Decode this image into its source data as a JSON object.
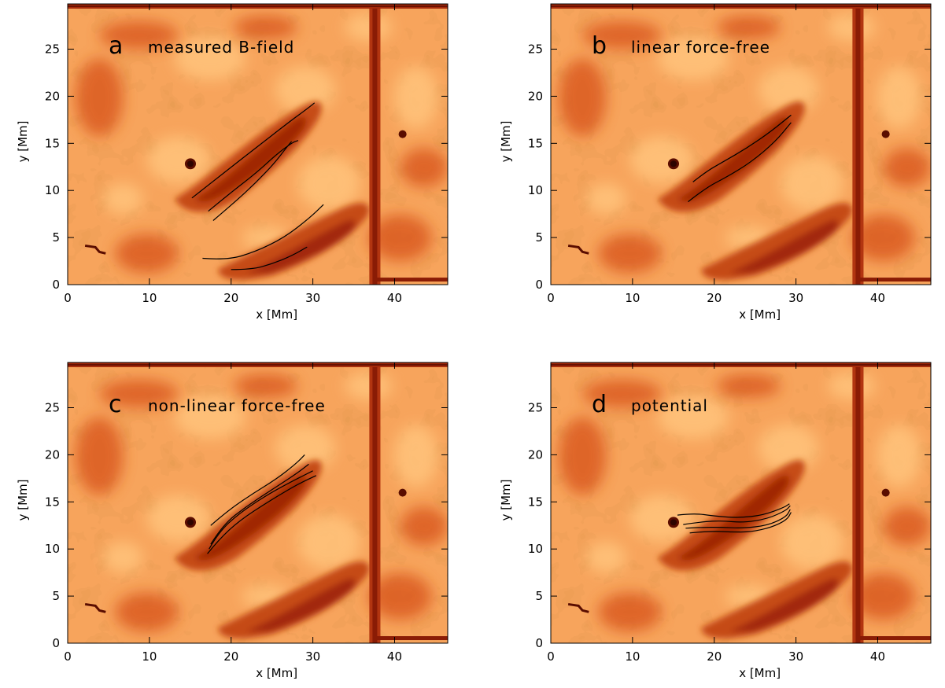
{
  "chart_data": [
    {
      "type": "heatmap",
      "panel_letter": "a",
      "title": "measured B-field",
      "xlabel": "x [Mm]",
      "ylabel": "y [Mm]",
      "xlim": [
        0,
        46.5
      ],
      "ylim": [
        0,
        29.8
      ],
      "xticks": [
        0,
        10,
        20,
        30,
        40
      ],
      "yticks": [
        0,
        5,
        10,
        15,
        20,
        25
      ],
      "series": [
        {
          "values": [
            [
              15.2,
              9.2
            ],
            [
              19,
              11.8
            ],
            [
              23,
              14.5
            ],
            [
              27,
              17.2
            ],
            [
              29.5,
              18.8
            ],
            [
              30.2,
              19.3
            ]
          ]
        },
        {
          "values": [
            [
              17.2,
              7.8
            ],
            [
              20,
              9.8
            ],
            [
              23,
              11.8
            ],
            [
              25.5,
              13.8
            ],
            [
              27.5,
              15.1
            ],
            [
              28.2,
              15.3
            ]
          ]
        },
        {
          "values": [
            [
              17.8,
              6.8
            ],
            [
              20.5,
              8.8
            ],
            [
              23,
              10.8
            ],
            [
              25.2,
              12.8
            ],
            [
              27,
              14.8
            ],
            [
              27.4,
              15.2
            ]
          ]
        },
        {
          "values": [
            [
              16.5,
              2.8
            ],
            [
              19.5,
              2.6
            ],
            [
              23,
              3.5
            ],
            [
              26.5,
              5
            ],
            [
              29.5,
              7
            ],
            [
              31.3,
              8.5
            ]
          ]
        },
        {
          "values": [
            [
              20,
              1.6
            ],
            [
              22.5,
              1.6
            ],
            [
              25,
              2.2
            ],
            [
              27.5,
              3.1
            ],
            [
              29.3,
              4
            ]
          ]
        }
      ]
    },
    {
      "type": "heatmap",
      "panel_letter": "b",
      "title": "linear force-free",
      "xlabel": "x [Mm]",
      "ylabel": "y [Mm]",
      "xlim": [
        0,
        46.5
      ],
      "ylim": [
        0,
        29.8
      ],
      "xticks": [
        0,
        10,
        20,
        30,
        40
      ],
      "yticks": [
        0,
        5,
        10,
        15,
        20,
        25
      ],
      "series": [
        {
          "values": [
            [
              17.4,
              10.9
            ],
            [
              19,
              12
            ],
            [
              21,
              13
            ],
            [
              24,
              14.5
            ],
            [
              27,
              16.3
            ],
            [
              29.4,
              18
            ]
          ]
        },
        {
          "values": [
            [
              16.8,
              8.8
            ],
            [
              19,
              10.3
            ],
            [
              21.5,
              11.4
            ],
            [
              24.5,
              13
            ],
            [
              27.5,
              15.2
            ],
            [
              29.4,
              17.2
            ]
          ]
        }
      ]
    },
    {
      "type": "heatmap",
      "panel_letter": "c",
      "title": "non-linear force-free",
      "xlabel": "x [Mm]",
      "ylabel": "y [Mm]",
      "xlim": [
        0,
        46.5
      ],
      "ylim": [
        0,
        29.8
      ],
      "xticks": [
        0,
        10,
        20,
        30,
        40
      ],
      "yticks": [
        0,
        5,
        10,
        15,
        20,
        25
      ],
      "series": [
        {
          "values": [
            [
              17.5,
              12.5
            ],
            [
              19.5,
              14
            ],
            [
              22.5,
              15.8
            ],
            [
              25.5,
              17.4
            ],
            [
              28,
              19.1
            ],
            [
              29,
              20
            ]
          ]
        },
        {
          "values": [
            [
              17.5,
              10.5
            ],
            [
              19,
              12.6
            ],
            [
              22,
              14.6
            ],
            [
              25,
              16.3
            ],
            [
              28,
              18
            ],
            [
              29.5,
              19
            ]
          ]
        },
        {
          "values": [
            [
              17.3,
              10
            ],
            [
              18.5,
              11.8
            ],
            [
              21,
              13.8
            ],
            [
              24.5,
              15.8
            ],
            [
              27.5,
              17.2
            ],
            [
              30,
              18.3
            ]
          ]
        },
        {
          "values": [
            [
              17.1,
              9.5
            ],
            [
              18.5,
              11
            ],
            [
              21,
              13
            ],
            [
              24.5,
              15
            ],
            [
              28,
              16.8
            ],
            [
              30.4,
              17.8
            ]
          ]
        }
      ]
    },
    {
      "type": "heatmap",
      "panel_letter": "d",
      "title": "potential",
      "xlabel": "x [Mm]",
      "ylabel": "y [Mm]",
      "xlim": [
        0,
        46.5
      ],
      "ylim": [
        0,
        29.8
      ],
      "xticks": [
        0,
        10,
        20,
        30,
        40
      ],
      "yticks": [
        0,
        5,
        10,
        15,
        20,
        25
      ],
      "series": [
        {
          "values": [
            [
              15.5,
              13.6
            ],
            [
              17.5,
              13.8
            ],
            [
              20,
              13.5
            ],
            [
              23,
              13.3
            ],
            [
              26,
              13.6
            ],
            [
              28.5,
              14.4
            ],
            [
              29.2,
              14.8
            ]
          ]
        },
        {
          "values": [
            [
              16.2,
              12.6
            ],
            [
              18.5,
              12.9
            ],
            [
              21,
              13
            ],
            [
              23.5,
              12.8
            ],
            [
              26.5,
              13.2
            ],
            [
              28.8,
              14.1
            ],
            [
              29.3,
              14.6
            ]
          ]
        },
        {
          "values": [
            [
              16.5,
              12.2
            ],
            [
              18.5,
              12.3
            ],
            [
              21,
              12.3
            ],
            [
              23.5,
              12.2
            ],
            [
              26.5,
              12.5
            ],
            [
              28.8,
              13.4
            ],
            [
              29.3,
              14.2
            ]
          ]
        },
        {
          "values": [
            [
              17,
              11.7
            ],
            [
              19.5,
              11.9
            ],
            [
              22,
              11.8
            ],
            [
              24.5,
              11.8
            ],
            [
              27,
              12.3
            ],
            [
              28.9,
              13.1
            ],
            [
              29.4,
              13.9
            ]
          ]
        }
      ]
    }
  ]
}
